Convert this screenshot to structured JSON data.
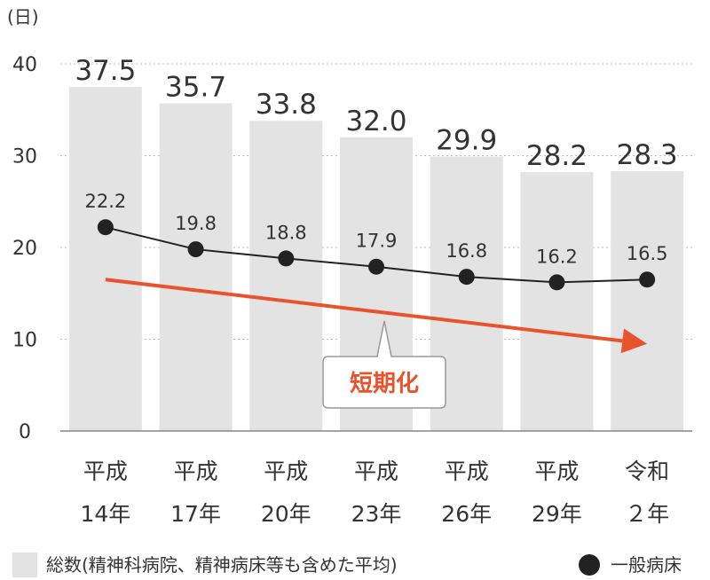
{
  "chart_data": {
    "type": "bar",
    "ylabel": "(日)",
    "ylim": [
      0,
      40
    ],
    "yticks": [
      "0",
      "10",
      "20",
      "30",
      "40"
    ],
    "categories": [
      [
        "平成",
        "14年"
      ],
      [
        "平成",
        "17年"
      ],
      [
        "平成",
        "20年"
      ],
      [
        "平成",
        "23年"
      ],
      [
        "平成",
        "26年"
      ],
      [
        "平成",
        "29年"
      ],
      [
        "令和",
        "２年"
      ]
    ],
    "series": [
      {
        "name": "総数(精神科病院、精神病床等も含めた平均)",
        "type": "bar",
        "values": [
          37.5,
          35.7,
          33.8,
          32.0,
          29.9,
          28.2,
          28.3
        ],
        "labels": [
          "37.5",
          "35.7",
          "33.8",
          "32.0",
          "29.9",
          "28.2",
          "28.3"
        ],
        "color": "#e3e3e3"
      },
      {
        "name": "一般病床",
        "type": "line",
        "values": [
          22.2,
          19.8,
          18.8,
          17.9,
          16.8,
          16.2,
          16.5
        ],
        "labels": [
          "22.2",
          "19.8",
          "18.8",
          "17.9",
          "16.8",
          "16.2",
          "16.5"
        ],
        "color": "#222222"
      }
    ],
    "annotation": {
      "text": "短期化",
      "color": "#e8532e",
      "arrow_from": [
        0,
        16.5
      ],
      "arrow_to": [
        6,
        9.5
      ]
    },
    "grid": true,
    "legend": "bottom"
  }
}
